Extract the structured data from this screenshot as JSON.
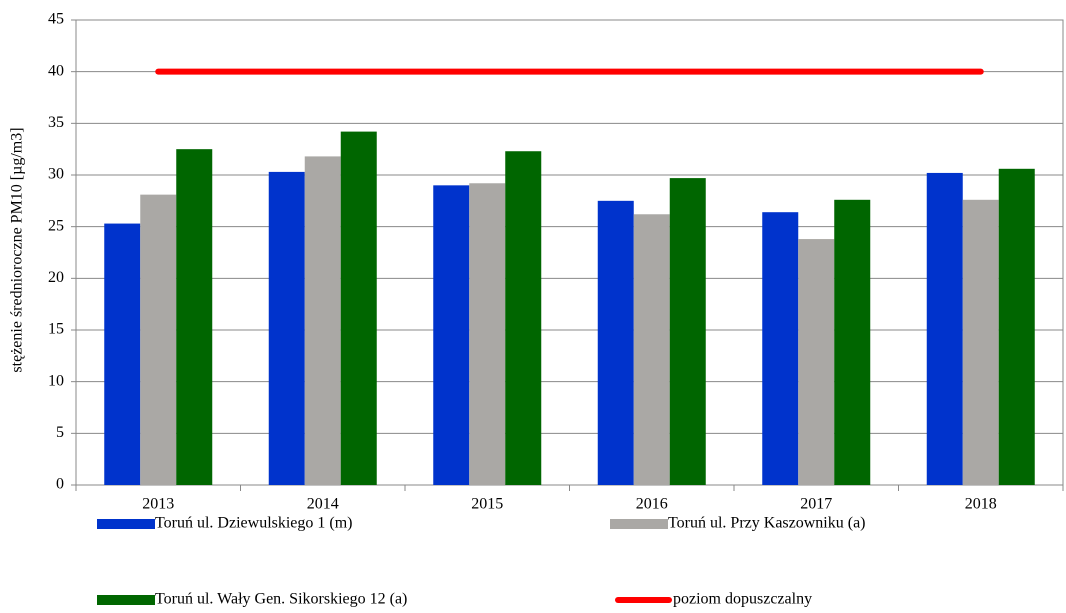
{
  "chart_data": {
    "type": "bar",
    "y_label": "stężenie średnioroczne PM10 [µg/m3]",
    "categories": [
      "2013",
      "2014",
      "2015",
      "2016",
      "2017",
      "2018"
    ],
    "series": [
      {
        "name": "Toruń ul. Dziewulskiego 1 (m)",
        "color": "#0033cc",
        "values": [
          25.3,
          30.3,
          29.0,
          27.5,
          26.4,
          30.2
        ]
      },
      {
        "name": "Toruń ul. Przy Kaszowniku (a)",
        "color": "#aaa8a5",
        "values": [
          28.1,
          31.8,
          29.2,
          26.2,
          23.8,
          27.6
        ]
      },
      {
        "name": "Toruń ul. Wały Gen. Sikorskiego 12 (a)",
        "color": "#006600",
        "values": [
          32.5,
          34.2,
          32.3,
          29.7,
          27.6,
          30.6
        ]
      },
      {
        "name": "poziom dopuszczalny",
        "color": "#ff0000",
        "type": "line",
        "values": [
          40,
          40,
          40,
          40,
          40,
          40
        ]
      }
    ],
    "ylim": [
      0,
      45
    ],
    "yticks": [
      0,
      5,
      10,
      15,
      20,
      25,
      30,
      35,
      40,
      45
    ],
    "grid": true
  }
}
